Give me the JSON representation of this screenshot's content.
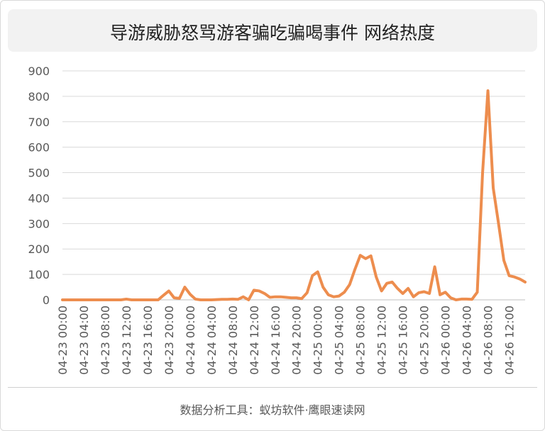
{
  "chart_data": {
    "type": "line",
    "title": "导游威胁怒骂游客骗吃骗喝事件 网络热度",
    "source": "数据分析工具：蚁坊软件·鹰眼速读网",
    "ylim": [
      0,
      900
    ],
    "yticks": [
      0,
      100,
      200,
      300,
      400,
      500,
      600,
      700,
      800,
      900
    ],
    "grid": true,
    "line_color": "#ED8D4E",
    "x_tick_labels": [
      "04-23 00:00",
      "04-23 04:00",
      "04-23 08:00",
      "04-23 12:00",
      "04-23 16:00",
      "04-23 20:00",
      "04-24 00:00",
      "04-24 04:00",
      "04-24 08:00",
      "04-24 12:00",
      "04-24 16:00",
      "04-24 20:00",
      "04-25 00:00",
      "04-25 04:00",
      "04-25 08:00",
      "04-25 12:00",
      "04-25 16:00",
      "04-25 20:00",
      "04-26 00:00",
      "04-26 04:00",
      "04-26 08:00",
      "04-26 12:00"
    ],
    "tick_every": 4,
    "series": [
      {
        "values": [
          0,
          0,
          0,
          0,
          0,
          0,
          0,
          0,
          0,
          0,
          0,
          0,
          3,
          0,
          0,
          0,
          0,
          0,
          0,
          18,
          35,
          8,
          6,
          50,
          22,
          3,
          0,
          0,
          0,
          1,
          2,
          2,
          3,
          2,
          12,
          0,
          38,
          35,
          25,
          10,
          12,
          12,
          10,
          8,
          8,
          5,
          28,
          95,
          110,
          50,
          20,
          12,
          15,
          30,
          60,
          120,
          175,
          162,
          173,
          90,
          35,
          65,
          70,
          45,
          25,
          45,
          12,
          28,
          32,
          25,
          130,
          20,
          30,
          8,
          0,
          3,
          3,
          2,
          30,
          500,
          822,
          440,
          300,
          155,
          95,
          90,
          82,
          70
        ]
      }
    ]
  }
}
